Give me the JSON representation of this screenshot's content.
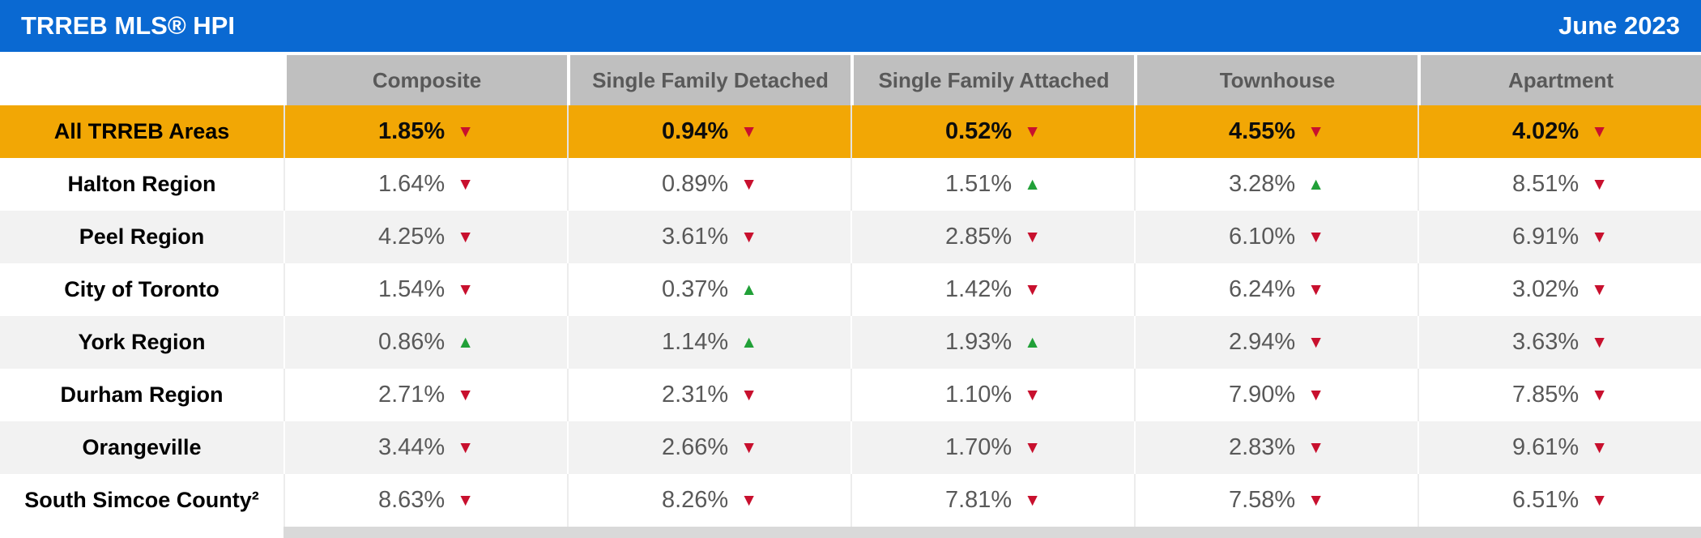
{
  "title_bar": {
    "title": "TRREB MLS® HPI",
    "period": "June 2023"
  },
  "table": {
    "columns": [
      "Composite",
      "Single Family Detached",
      "Single Family Attached",
      "Townhouse",
      "Apartment"
    ],
    "rows": [
      {
        "label": "All TRREB Areas",
        "highlight": true,
        "values": [
          {
            "value": "1.85%",
            "arrow": "▼",
            "dir": "down"
          },
          {
            "value": "0.94%",
            "arrow": "▼",
            "dir": "down"
          },
          {
            "value": "0.52%",
            "arrow": "▼",
            "dir": "down"
          },
          {
            "value": "4.55%",
            "arrow": "▼",
            "dir": "down"
          },
          {
            "value": "4.02%",
            "arrow": "▼",
            "dir": "down"
          }
        ]
      },
      {
        "label": "Halton Region",
        "highlight": false,
        "values": [
          {
            "value": "1.64%",
            "arrow": "▼",
            "dir": "down"
          },
          {
            "value": "0.89%",
            "arrow": "▼",
            "dir": "down"
          },
          {
            "value": "1.51%",
            "arrow": "▲",
            "dir": "up"
          },
          {
            "value": "3.28%",
            "arrow": "▲",
            "dir": "up"
          },
          {
            "value": "8.51%",
            "arrow": "▼",
            "dir": "down"
          }
        ]
      },
      {
        "label": "Peel Region",
        "highlight": false,
        "values": [
          {
            "value": "4.25%",
            "arrow": "▼",
            "dir": "down"
          },
          {
            "value": "3.61%",
            "arrow": "▼",
            "dir": "down"
          },
          {
            "value": "2.85%",
            "arrow": "▼",
            "dir": "down"
          },
          {
            "value": "6.10%",
            "arrow": "▼",
            "dir": "down"
          },
          {
            "value": "6.91%",
            "arrow": "▼",
            "dir": "down"
          }
        ]
      },
      {
        "label": "City of Toronto",
        "highlight": false,
        "values": [
          {
            "value": "1.54%",
            "arrow": "▼",
            "dir": "down"
          },
          {
            "value": "0.37%",
            "arrow": "▲",
            "dir": "up"
          },
          {
            "value": "1.42%",
            "arrow": "▼",
            "dir": "down"
          },
          {
            "value": "6.24%",
            "arrow": "▼",
            "dir": "down"
          },
          {
            "value": "3.02%",
            "arrow": "▼",
            "dir": "down"
          }
        ]
      },
      {
        "label": "York Region",
        "highlight": false,
        "values": [
          {
            "value": "0.86%",
            "arrow": "▲",
            "dir": "up"
          },
          {
            "value": "1.14%",
            "arrow": "▲",
            "dir": "up"
          },
          {
            "value": "1.93%",
            "arrow": "▲",
            "dir": "up"
          },
          {
            "value": "2.94%",
            "arrow": "▼",
            "dir": "down"
          },
          {
            "value": "3.63%",
            "arrow": "▼",
            "dir": "down"
          }
        ]
      },
      {
        "label": "Durham Region",
        "highlight": false,
        "values": [
          {
            "value": "2.71%",
            "arrow": "▼",
            "dir": "down"
          },
          {
            "value": "2.31%",
            "arrow": "▼",
            "dir": "down"
          },
          {
            "value": "1.10%",
            "arrow": "▼",
            "dir": "down"
          },
          {
            "value": "7.90%",
            "arrow": "▼",
            "dir": "down"
          },
          {
            "value": "7.85%",
            "arrow": "▼",
            "dir": "down"
          }
        ]
      },
      {
        "label": "Orangeville",
        "highlight": false,
        "values": [
          {
            "value": "3.44%",
            "arrow": "▼",
            "dir": "down"
          },
          {
            "value": "2.66%",
            "arrow": "▼",
            "dir": "down"
          },
          {
            "value": "1.70%",
            "arrow": "▼",
            "dir": "down"
          },
          {
            "value": "2.83%",
            "arrow": "▼",
            "dir": "down"
          },
          {
            "value": "9.61%",
            "arrow": "▼",
            "dir": "down"
          }
        ]
      },
      {
        "label": "South Simcoe County²",
        "highlight": false,
        "values": [
          {
            "value": "8.63%",
            "arrow": "▼",
            "dir": "down"
          },
          {
            "value": "8.26%",
            "arrow": "▼",
            "dir": "down"
          },
          {
            "value": "7.81%",
            "arrow": "▼",
            "dir": "down"
          },
          {
            "value": "7.58%",
            "arrow": "▼",
            "dir": "down"
          },
          {
            "value": "6.51%",
            "arrow": "▼",
            "dir": "down"
          }
        ]
      }
    ]
  },
  "colors": {
    "accent": "#0a69d2",
    "highlight": "#f2a705",
    "header_bg": "#bfbfbf",
    "header_text": "#595959",
    "alt_row_bg": "#f2f2f2",
    "value_text": "#595959",
    "up": "#21a038",
    "down": "#c8102e",
    "bottom_strip": "#d9d9d9"
  },
  "chart_data": {
    "type": "table",
    "title": "TRREB MLS® HPI",
    "period": "June 2023",
    "columns": [
      "Composite",
      "Single Family Detached",
      "Single Family Attached",
      "Townhouse",
      "Apartment"
    ],
    "rows": [
      {
        "region": "All TRREB Areas",
        "values_pct": [
          1.85,
          0.94,
          0.52,
          4.55,
          4.02
        ],
        "directions": [
          "down",
          "down",
          "down",
          "down",
          "down"
        ]
      },
      {
        "region": "Halton Region",
        "values_pct": [
          1.64,
          0.89,
          1.51,
          3.28,
          8.51
        ],
        "directions": [
          "down",
          "down",
          "up",
          "up",
          "down"
        ]
      },
      {
        "region": "Peel Region",
        "values_pct": [
          4.25,
          3.61,
          2.85,
          6.1,
          6.91
        ],
        "directions": [
          "down",
          "down",
          "down",
          "down",
          "down"
        ]
      },
      {
        "region": "City of Toronto",
        "values_pct": [
          1.54,
          0.37,
          1.42,
          6.24,
          3.02
        ],
        "directions": [
          "down",
          "up",
          "down",
          "down",
          "down"
        ]
      },
      {
        "region": "York Region",
        "values_pct": [
          0.86,
          1.14,
          1.93,
          2.94,
          3.63
        ],
        "directions": [
          "up",
          "up",
          "up",
          "down",
          "down"
        ]
      },
      {
        "region": "Durham Region",
        "values_pct": [
          2.71,
          2.31,
          1.1,
          7.9,
          7.85
        ],
        "directions": [
          "down",
          "down",
          "down",
          "down",
          "down"
        ]
      },
      {
        "region": "Orangeville",
        "values_pct": [
          3.44,
          2.66,
          1.7,
          2.83,
          9.61
        ],
        "directions": [
          "down",
          "down",
          "down",
          "down",
          "down"
        ]
      },
      {
        "region": "South Simcoe County²",
        "values_pct": [
          8.63,
          8.26,
          7.81,
          7.58,
          6.51
        ],
        "directions": [
          "down",
          "down",
          "down",
          "down",
          "down"
        ]
      }
    ]
  }
}
